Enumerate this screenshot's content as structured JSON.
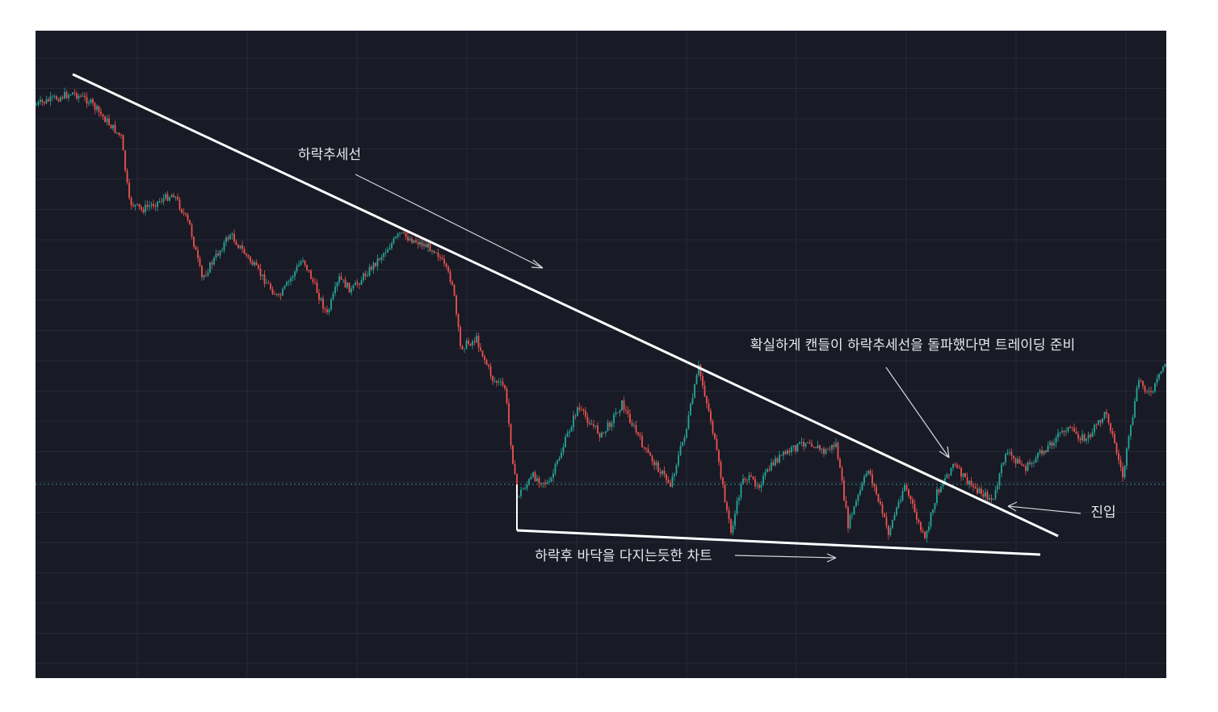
{
  "annotations": {
    "downtrend": "하락추세선",
    "breakout": "확실하게 캔들이 하락추세선을 돌파했다면 트레이딩 준비",
    "entry": "진입",
    "bottom": "하락후 바닥을 다지는듯한 차트"
  }
}
